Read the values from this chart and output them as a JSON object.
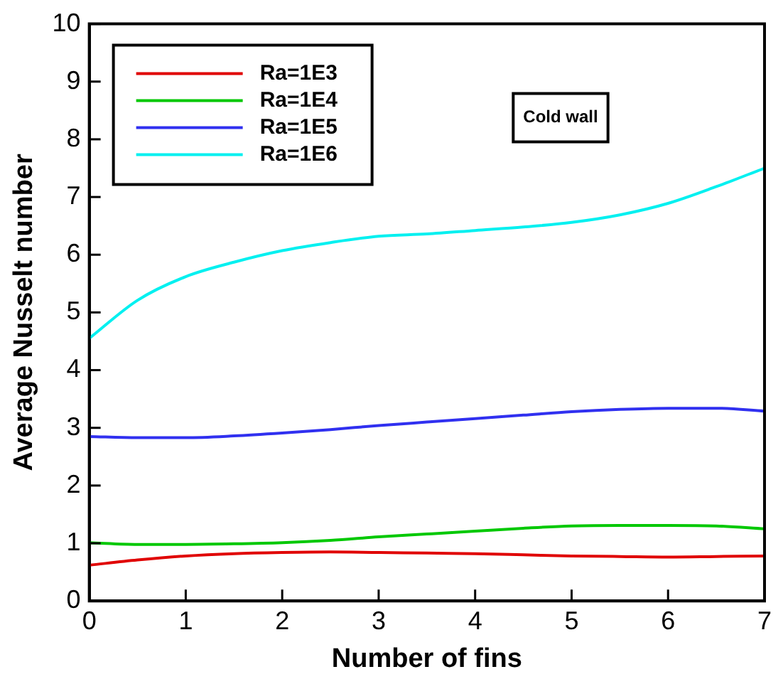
{
  "chart_data": {
    "type": "line",
    "xlabel": "Number of fins",
    "ylabel": "Average Nusselt number",
    "x": [
      0,
      0.5,
      1,
      1.5,
      2,
      2.5,
      3,
      3.5,
      4,
      4.5,
      5,
      5.5,
      6,
      6.5,
      7
    ],
    "series": [
      {
        "name": "Ra=1E3",
        "color": "#e00000",
        "values": [
          0.62,
          0.71,
          0.78,
          0.82,
          0.84,
          0.85,
          0.84,
          0.83,
          0.82,
          0.8,
          0.78,
          0.77,
          0.76,
          0.77,
          0.78
        ]
      },
      {
        "name": "Ra=1E4",
        "color": "#00c800",
        "values": [
          1.01,
          0.98,
          0.98,
          0.99,
          1.01,
          1.05,
          1.11,
          1.16,
          1.21,
          1.26,
          1.3,
          1.31,
          1.31,
          1.3,
          1.25
        ]
      },
      {
        "name": "Ra=1E5",
        "color": "#3030f0",
        "values": [
          2.85,
          2.83,
          2.83,
          2.86,
          2.91,
          2.97,
          3.04,
          3.1,
          3.16,
          3.22,
          3.28,
          3.32,
          3.34,
          3.34,
          3.29
        ]
      },
      {
        "name": "Ra=1E6",
        "color": "#00f0f0",
        "values": [
          4.55,
          5.21,
          5.62,
          5.87,
          6.07,
          6.21,
          6.32,
          6.36,
          6.42,
          6.48,
          6.56,
          6.69,
          6.89,
          7.18,
          7.5
        ]
      }
    ],
    "xlim": [
      0,
      7
    ],
    "xticks": [
      0,
      1,
      2,
      3,
      4,
      5,
      6,
      7
    ],
    "ylim": [
      0,
      10
    ],
    "yticks": [
      0,
      1,
      2,
      3,
      4,
      5,
      6,
      7,
      8,
      9,
      10
    ],
    "grid": false,
    "legend": "top left",
    "marker": "none",
    "line_style": "solid",
    "annotations": [
      "Cold wall"
    ]
  }
}
